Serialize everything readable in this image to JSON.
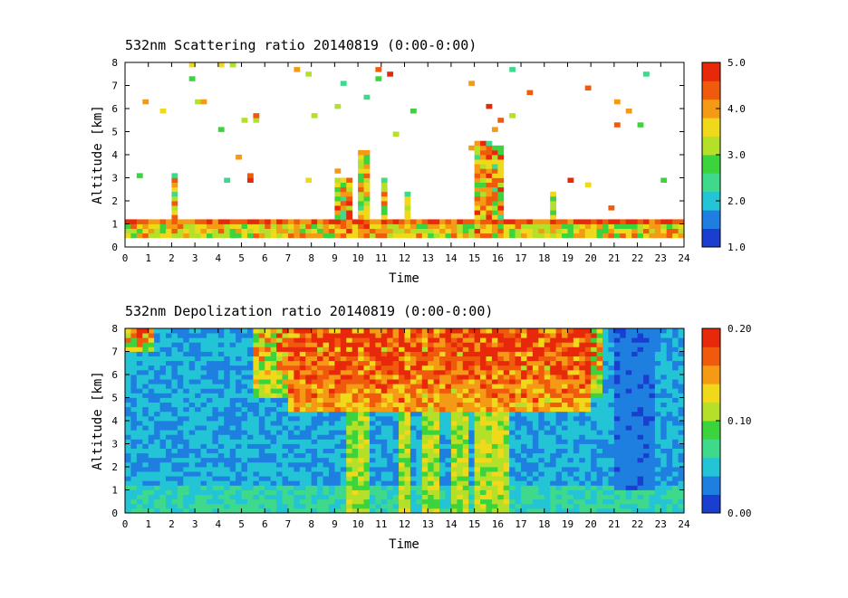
{
  "chart_data": [
    {
      "type": "heatmap",
      "title": "532nm Scattering ratio  20140819 (0:00-0:00)",
      "xlabel": "Time",
      "ylabel": "Altitude [km]",
      "xlim": [
        0,
        24
      ],
      "ylim": [
        0,
        8
      ],
      "x_ticks": [
        "0",
        "1",
        "2",
        "3",
        "4",
        "5",
        "6",
        "7",
        "8",
        "9",
        "10",
        "11",
        "12",
        "13",
        "14",
        "15",
        "16",
        "17",
        "18",
        "19",
        "20",
        "21",
        "22",
        "23",
        "24"
      ],
      "y_ticks": [
        "0",
        "1",
        "2",
        "3",
        "4",
        "5",
        "6",
        "7",
        "8"
      ],
      "colorbar": {
        "range": [
          1.0,
          5.0
        ],
        "ticks": [
          "1.0",
          "2.0",
          "3.0",
          "4.0",
          "5.0"
        ],
        "colors": [
          "#1a3fd0",
          "#1e7fe0",
          "#22c4d6",
          "#3ed98a",
          "#3cd43c",
          "#b4e02a",
          "#f0d81a",
          "#f59a14",
          "#f05a0c",
          "#e8280a"
        ]
      }
    },
    {
      "type": "heatmap",
      "title": "532nm Depolization ratio  20140819 (0:00-0:00)",
      "xlabel": "Time",
      "ylabel": "Altitude [km]",
      "xlim": [
        0,
        24
      ],
      "ylim": [
        0,
        8
      ],
      "x_ticks": [
        "0",
        "1",
        "2",
        "3",
        "4",
        "5",
        "6",
        "7",
        "8",
        "9",
        "10",
        "11",
        "12",
        "13",
        "14",
        "15",
        "16",
        "17",
        "18",
        "19",
        "20",
        "21",
        "22",
        "23",
        "24"
      ],
      "y_ticks": [
        "0",
        "1",
        "2",
        "3",
        "4",
        "5",
        "6",
        "7",
        "8"
      ],
      "colorbar": {
        "range": [
          0.0,
          0.2
        ],
        "ticks": [
          "0.00",
          "0.10",
          "0.20"
        ],
        "colors": [
          "#1a3fd0",
          "#1e7fe0",
          "#22c4d6",
          "#3ed98a",
          "#3cd43c",
          "#b4e02a",
          "#f0d81a",
          "#f59a14",
          "#f05a0c",
          "#e8280a"
        ]
      }
    }
  ]
}
